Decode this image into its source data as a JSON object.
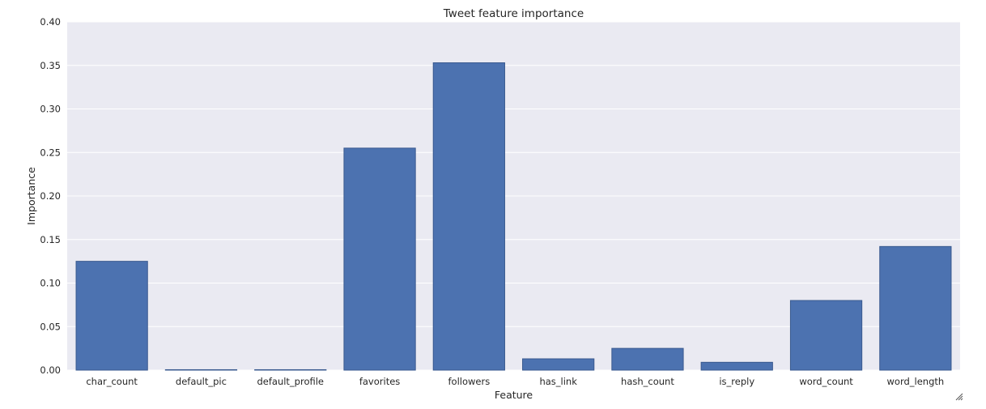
{
  "chart_data": {
    "type": "bar",
    "title": "Tweet feature importance",
    "xlabel": "Feature",
    "ylabel": "Importance",
    "categories": [
      "char_count",
      "default_pic",
      "default_profile",
      "favorites",
      "followers",
      "has_link",
      "hash_count",
      "is_reply",
      "word_count",
      "word_length"
    ],
    "values": [
      0.125,
      0.0005,
      0.0005,
      0.255,
      0.353,
      0.013,
      0.025,
      0.009,
      0.08,
      0.142
    ],
    "ylim": [
      0,
      0.4
    ],
    "yticks": [
      "0.00",
      "0.05",
      "0.10",
      "0.15",
      "0.20",
      "0.25",
      "0.30",
      "0.35",
      "0.40"
    ],
    "grid": true,
    "bar_color": "#4c72b0",
    "background_color": "#eaeaf2"
  }
}
